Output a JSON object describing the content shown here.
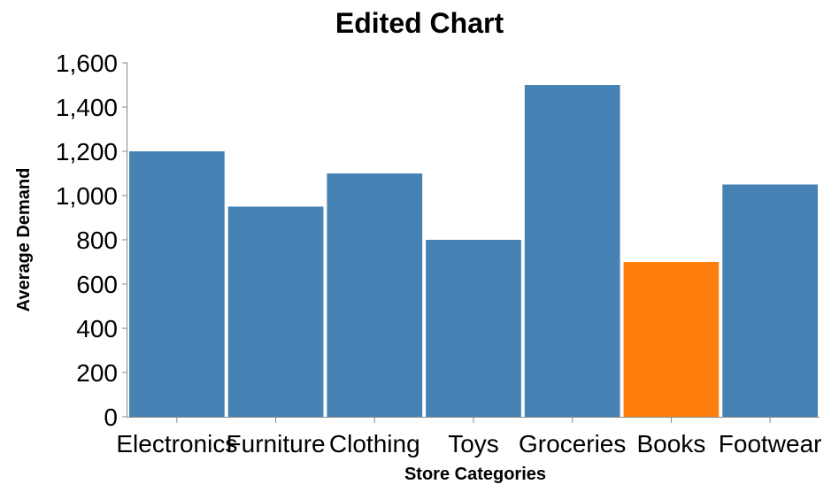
{
  "chart_data": {
    "type": "bar",
    "title": "Edited Chart",
    "xlabel": "Store Categories",
    "ylabel": "Average Demand",
    "categories": [
      "Electronics",
      "Furniture",
      "Clothing",
      "Toys",
      "Groceries",
      "Books",
      "Footwear"
    ],
    "values": [
      1200,
      950,
      1100,
      800,
      1500,
      700,
      1050
    ],
    "highlight": [
      "Books"
    ],
    "colors": {
      "default": "#4682b4",
      "highlight": "#ff7f0e",
      "axis": "#888888"
    },
    "ylim": [
      0,
      1600
    ],
    "yticks": [
      0,
      200,
      400,
      600,
      800,
      1000,
      1200,
      1400,
      1600
    ],
    "ytick_labels": [
      "0",
      "200",
      "400",
      "600",
      "800",
      "1,000",
      "1,200",
      "1,400",
      "1,600"
    ],
    "grid": false,
    "legend": "none"
  }
}
